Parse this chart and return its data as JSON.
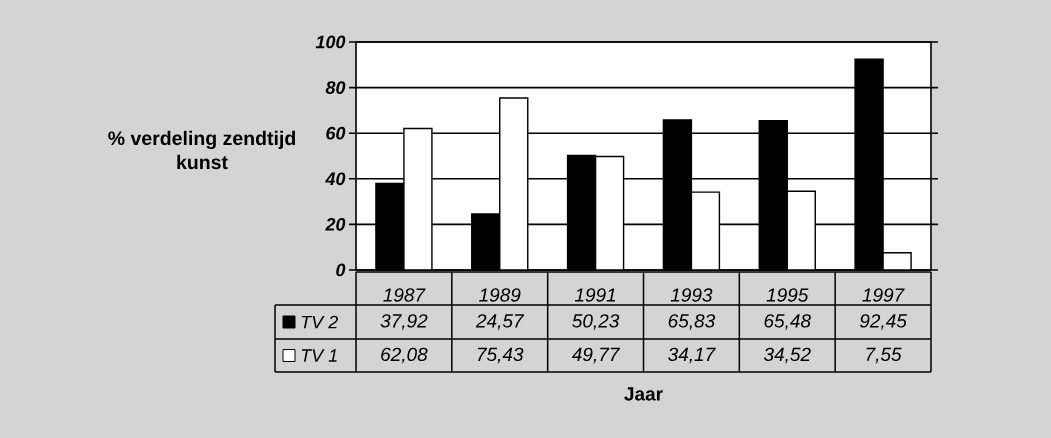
{
  "chart_data": {
    "type": "bar",
    "ylabel": "% verdeling zendtijd kunst",
    "xlabel": "Jaar",
    "categories": [
      "1987",
      "1989",
      "1991",
      "1993",
      "1995",
      "1997"
    ],
    "series": [
      {
        "name": "TV 2",
        "color": "#000000",
        "values": [
          37.92,
          24.57,
          50.23,
          65.83,
          65.48,
          92.45
        ],
        "value_labels": [
          "37,92",
          "24,57",
          "50,23",
          "65,83",
          "65,48",
          "92,45"
        ]
      },
      {
        "name": "TV 1",
        "color": "#ffffff",
        "values": [
          62.08,
          75.43,
          49.77,
          34.17,
          34.52,
          7.55
        ],
        "value_labels": [
          "62,08",
          "75,43",
          "49,77",
          "34,17",
          "34,52",
          "7,55"
        ]
      }
    ],
    "ylim": [
      0,
      100
    ],
    "yticks": [
      0,
      20,
      40,
      60,
      80,
      100
    ],
    "grid": "y",
    "legend": "bottom left"
  }
}
